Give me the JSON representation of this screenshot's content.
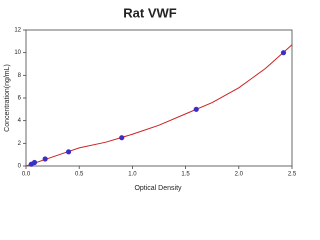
{
  "chart_data": {
    "type": "scatter",
    "title": "Rat VWF",
    "x_label": "Optical Density",
    "y_label": "Concentration(ng/mL)",
    "x": [
      0.05,
      0.08,
      0.18,
      0.4,
      0.9,
      1.6,
      2.42
    ],
    "values": [
      0.16,
      0.31,
      0.62,
      1.25,
      2.5,
      5,
      10
    ],
    "color": "#3a2fc4",
    "curve": {
      "x": [
        0,
        0.25,
        0.5,
        0.75,
        1,
        1.25,
        1.5,
        1.75,
        2,
        2.25,
        2.5
      ],
      "values": [
        0,
        0.8,
        1.6,
        2.1,
        2.8,
        3.6,
        4.6,
        5.6,
        6.9,
        8.6,
        10.7
      ],
      "color": "#cc2222"
    },
    "xlim": [
      0,
      2.5
    ],
    "xticks": [
      {
        "value": 0,
        "label": "0.0"
      },
      {
        "value": 0.5,
        "label": "0.5"
      },
      {
        "value": 1,
        "label": "1.0"
      },
      {
        "value": 1.5,
        "label": "1.5"
      },
      {
        "value": 2,
        "label": "2.0"
      },
      {
        "value": 2.5,
        "label": "2.5"
      }
    ],
    "ylim": [
      0,
      12
    ],
    "yticks": [
      0,
      2,
      4,
      6,
      8,
      10,
      12
    ],
    "grid": false
  }
}
